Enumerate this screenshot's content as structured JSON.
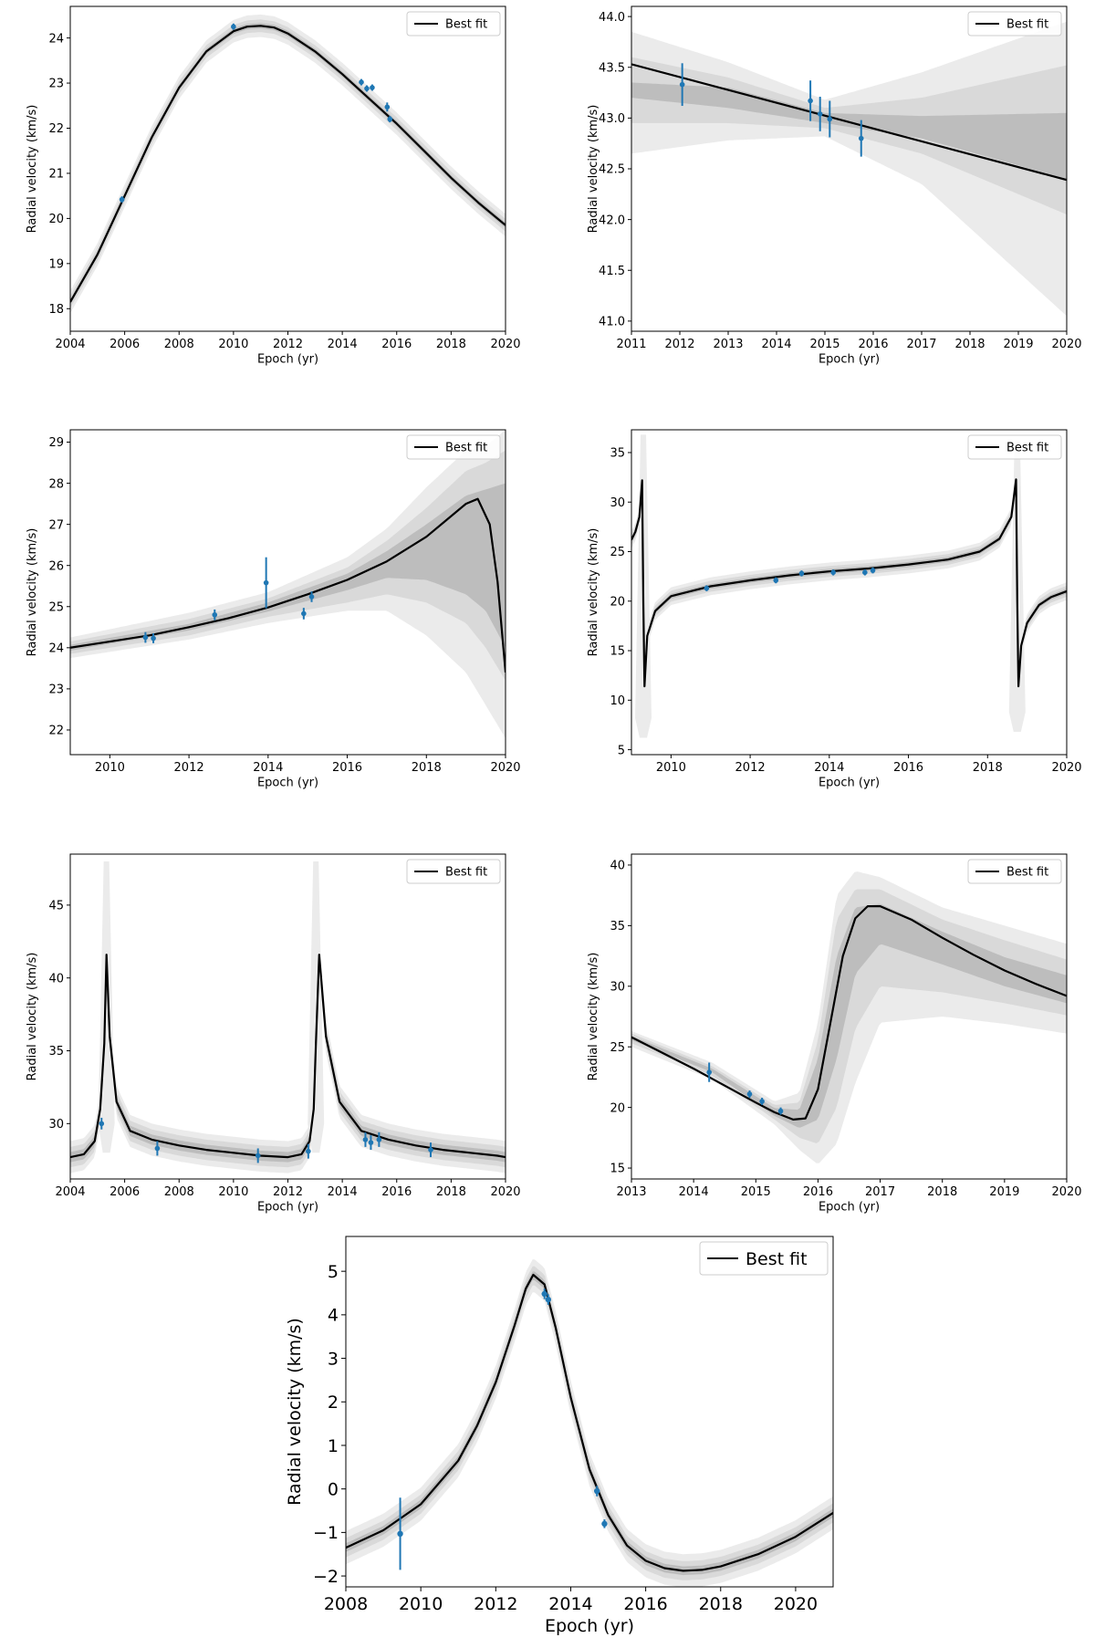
{
  "chart_data": [
    {
      "type": "line",
      "xlabel": "Epoch (yr)",
      "ylabel": "Radial velocity (km/s)",
      "xlim": [
        2004,
        2020
      ],
      "ylim": [
        17.5,
        24.7
      ],
      "xticks": [
        2004,
        2006,
        2008,
        2010,
        2012,
        2014,
        2016,
        2018,
        2020
      ],
      "yticks": [
        18,
        19,
        20,
        21,
        22,
        23,
        24
      ],
      "legend": {
        "label": "Best fit",
        "position": "top-right"
      },
      "grid": false,
      "band_widths": [
        0.06,
        0.14,
        0.25
      ],
      "fit": {
        "x": [
          2004,
          2005,
          2006,
          2007,
          2008,
          2009,
          2010,
          2010.5,
          2011,
          2011.5,
          2012,
          2013,
          2014,
          2015,
          2016,
          2017,
          2018,
          2019,
          2020
        ],
        "y": [
          18.15,
          19.2,
          20.5,
          21.8,
          22.9,
          23.7,
          24.15,
          24.25,
          24.27,
          24.23,
          24.1,
          23.7,
          23.2,
          22.65,
          22.1,
          21.5,
          20.9,
          20.35,
          19.85
        ]
      },
      "points": [
        {
          "x": 2005.9,
          "y": 20.42,
          "err": 0.07
        },
        {
          "x": 2010.0,
          "y": 24.25,
          "err": 0.07
        },
        {
          "x": 2014.7,
          "y": 23.02,
          "err": 0.07
        },
        {
          "x": 2014.9,
          "y": 22.88,
          "err": 0.07
        },
        {
          "x": 2015.1,
          "y": 22.9,
          "err": 0.07
        },
        {
          "x": 2015.65,
          "y": 22.47,
          "err": 0.1
        },
        {
          "x": 2015.75,
          "y": 22.2,
          "err": 0.07
        }
      ]
    },
    {
      "type": "line",
      "xlabel": "Epoch (yr)",
      "ylabel": "Radial velocity (km/s)",
      "xlim": [
        2011,
        2020
      ],
      "ylim": [
        40.9,
        44.1
      ],
      "xticks": [
        2011,
        2012,
        2013,
        2014,
        2015,
        2016,
        2017,
        2018,
        2019,
        2020
      ],
      "yticks": [
        41.0,
        41.5,
        42.0,
        42.5,
        43.0,
        43.5,
        44.0
      ],
      "legend": {
        "label": "Best fit",
        "position": "top-right"
      },
      "grid": false,
      "fit": {
        "x": [
          2011,
          2020
        ],
        "y": [
          43.53,
          42.39
        ]
      },
      "bands": [
        {
          "x": [
            2011,
            2013,
            2015,
            2017,
            2020
          ],
          "lo": [
            42.65,
            42.78,
            42.82,
            42.35,
            41.05
          ],
          "hi": [
            43.85,
            43.55,
            43.18,
            43.45,
            43.95
          ]
        },
        {
          "x": [
            2011,
            2013,
            2015,
            2017,
            2020
          ],
          "lo": [
            42.95,
            42.95,
            42.9,
            42.65,
            42.05
          ],
          "hi": [
            43.6,
            43.4,
            43.1,
            43.2,
            43.52
          ]
        },
        {
          "x": [
            2011,
            2013,
            2015,
            2017,
            2020
          ],
          "lo": [
            43.2,
            43.1,
            42.95,
            42.8,
            42.4
          ],
          "hi": [
            43.35,
            43.3,
            43.05,
            43.02,
            43.05
          ]
        }
      ],
      "points": [
        {
          "x": 2012.05,
          "y": 43.33,
          "err": 0.21
        },
        {
          "x": 2014.7,
          "y": 43.17,
          "err": 0.2
        },
        {
          "x": 2014.9,
          "y": 43.04,
          "err": 0.17
        },
        {
          "x": 2015.1,
          "y": 42.99,
          "err": 0.18
        },
        {
          "x": 2015.75,
          "y": 42.8,
          "err": 0.18
        }
      ]
    },
    {
      "type": "line",
      "xlabel": "Epoch (yr)",
      "ylabel": "Radial velocity (km/s)",
      "xlim": [
        2009,
        2020
      ],
      "ylim": [
        21.4,
        29.3
      ],
      "xticks": [
        2010,
        2012,
        2014,
        2016,
        2018,
        2020
      ],
      "yticks": [
        22,
        23,
        24,
        25,
        26,
        27,
        28,
        29
      ],
      "legend": {
        "label": "Best fit",
        "position": "top-right"
      },
      "grid": false,
      "fit": {
        "x": [
          2009,
          2010,
          2011,
          2012,
          2013,
          2014,
          2015,
          2016,
          2017,
          2018,
          2018.5,
          2019,
          2019.3,
          2019.6,
          2019.8,
          2020
        ],
        "y": [
          24.0,
          24.15,
          24.3,
          24.5,
          24.72,
          24.98,
          25.3,
          25.65,
          26.1,
          26.7,
          27.1,
          27.5,
          27.62,
          27.0,
          25.6,
          23.4
        ]
      },
      "bands": [
        {
          "x": [
            2009,
            2012,
            2014,
            2016,
            2017,
            2018,
            2019,
            2019.5,
            2020
          ],
          "lo": [
            23.75,
            24.2,
            24.6,
            24.9,
            24.9,
            24.3,
            23.4,
            22.6,
            21.8
          ],
          "hi": [
            24.25,
            24.85,
            25.35,
            26.2,
            26.9,
            27.9,
            28.8,
            28.9,
            29.3
          ]
        },
        {
          "x": [
            2009,
            2012,
            2014,
            2016,
            2017,
            2018,
            2019,
            2019.5,
            2020
          ],
          "lo": [
            23.85,
            24.3,
            24.75,
            25.1,
            25.3,
            25.1,
            24.6,
            24.0,
            23.2
          ],
          "hi": [
            24.15,
            24.7,
            25.2,
            25.95,
            26.6,
            27.4,
            28.3,
            28.5,
            28.8
          ]
        },
        {
          "x": [
            2009,
            2012,
            2014,
            2016,
            2017,
            2018,
            2019,
            2019.5,
            2020
          ],
          "lo": [
            23.93,
            24.42,
            24.88,
            25.4,
            25.7,
            25.65,
            25.3,
            24.9,
            24.0
          ],
          "hi": [
            24.07,
            24.58,
            25.1,
            25.8,
            26.35,
            27.0,
            27.7,
            27.85,
            28.0
          ]
        }
      ],
      "points": [
        {
          "x": 2010.9,
          "y": 24.25,
          "err": 0.13
        },
        {
          "x": 2011.1,
          "y": 24.23,
          "err": 0.12
        },
        {
          "x": 2012.65,
          "y": 24.8,
          "err": 0.13
        },
        {
          "x": 2013.95,
          "y": 25.58,
          "err": 0.62
        },
        {
          "x": 2014.9,
          "y": 24.83,
          "err": 0.14
        },
        {
          "x": 2015.1,
          "y": 25.24,
          "err": 0.13
        }
      ]
    },
    {
      "type": "line",
      "xlabel": "Epoch (yr)",
      "ylabel": "Radial velocity (km/s)",
      "xlim": [
        2009,
        2020
      ],
      "ylim": [
        4.5,
        37.3
      ],
      "xticks": [
        2010,
        2012,
        2014,
        2016,
        2018,
        2020
      ],
      "yticks": [
        5,
        10,
        15,
        20,
        25,
        30,
        35
      ],
      "legend": {
        "label": "Best fit",
        "position": "top-right"
      },
      "grid": false,
      "fit": {
        "x": [
          2009,
          2009.1,
          2009.2,
          2009.27,
          2009.3,
          2009.33,
          2009.4,
          2009.6,
          2010,
          2011,
          2012,
          2013,
          2014,
          2015,
          2016,
          2017,
          2017.8,
          2018.3,
          2018.6,
          2018.72,
          2018.75,
          2018.78,
          2018.85,
          2019.0,
          2019.3,
          2019.6,
          2020
        ],
        "y": [
          26.2,
          27.0,
          28.5,
          32.2,
          20.0,
          11.4,
          16.5,
          19.0,
          20.5,
          21.5,
          22.1,
          22.6,
          23.0,
          23.3,
          23.7,
          24.2,
          25.0,
          26.3,
          28.5,
          32.3,
          20.0,
          11.4,
          15.5,
          17.8,
          19.6,
          20.4,
          21.0
        ]
      },
      "band_widths": [
        0.25,
        0.55,
        0.9
      ],
      "spikes": [
        {
          "x": 2009.3,
          "lo": 6.2,
          "hi": 36.8
        },
        {
          "x": 2018.75,
          "lo": 6.8,
          "hi": 36.2
        }
      ],
      "points": [
        {
          "x": 2010.9,
          "y": 21.3,
          "err": 0.3
        },
        {
          "x": 2012.65,
          "y": 22.1,
          "err": 0.3
        },
        {
          "x": 2013.3,
          "y": 22.8,
          "err": 0.3
        },
        {
          "x": 2014.1,
          "y": 22.9,
          "err": 0.3
        },
        {
          "x": 2014.9,
          "y": 22.9,
          "err": 0.3
        },
        {
          "x": 2015.1,
          "y": 23.1,
          "err": 0.3
        }
      ]
    },
    {
      "type": "line",
      "xlabel": "Epoch (yr)",
      "ylabel": "Radial velocity (km/s)",
      "xlim": [
        2004,
        2020
      ],
      "ylim": [
        26.2,
        48.5
      ],
      "xticks": [
        2004,
        2006,
        2008,
        2010,
        2012,
        2014,
        2016,
        2018,
        2020
      ],
      "yticks": [
        30,
        35,
        40,
        45
      ],
      "legend": {
        "label": "Best fit",
        "position": "top-right"
      },
      "grid": false,
      "fit": {
        "x": [
          2004,
          2004.5,
          2004.9,
          2005.1,
          2005.25,
          2005.33,
          2005.45,
          2005.7,
          2006.2,
          2007,
          2008,
          2009,
          2010,
          2011,
          2012,
          2012.5,
          2012.8,
          2012.95,
          2013.03,
          2013.15,
          2013.4,
          2013.9,
          2014.7,
          2015.7,
          2016.7,
          2017.7,
          2018.7,
          2019.7,
          2020
        ],
        "y": [
          27.7,
          27.9,
          28.8,
          31.0,
          35.5,
          41.6,
          36.0,
          31.5,
          29.5,
          28.9,
          28.5,
          28.2,
          28.0,
          27.8,
          27.7,
          27.9,
          28.8,
          31.0,
          35.5,
          41.6,
          36.0,
          31.5,
          29.5,
          28.9,
          28.5,
          28.2,
          28.0,
          27.8,
          27.7
        ]
      },
      "band_widths": [
        0.35,
        0.7,
        1.1
      ],
      "spikes": [
        {
          "x": 2005.33,
          "lo": 28.0,
          "hi": 48.0
        },
        {
          "x": 2013.03,
          "lo": 28.0,
          "hi": 48.0
        }
      ],
      "points": [
        {
          "x": 2005.15,
          "y": 30.0,
          "err": 0.4
        },
        {
          "x": 2007.2,
          "y": 28.3,
          "err": 0.5
        },
        {
          "x": 2010.9,
          "y": 27.8,
          "err": 0.5
        },
        {
          "x": 2012.75,
          "y": 28.1,
          "err": 0.5
        },
        {
          "x": 2014.85,
          "y": 28.9,
          "err": 0.5
        },
        {
          "x": 2015.05,
          "y": 28.7,
          "err": 0.5
        },
        {
          "x": 2015.35,
          "y": 28.9,
          "err": 0.5
        },
        {
          "x": 2017.25,
          "y": 28.2,
          "err": 0.5
        }
      ]
    },
    {
      "type": "line",
      "xlabel": "Epoch (yr)",
      "ylabel": "Radial velocity (km/s)",
      "xlim": [
        2013,
        2020
      ],
      "ylim": [
        14.1,
        40.9
      ],
      "xticks": [
        2013,
        2014,
        2015,
        2016,
        2017,
        2018,
        2019,
        2020
      ],
      "yticks": [
        15,
        20,
        25,
        30,
        35,
        40
      ],
      "legend": {
        "label": "Best fit",
        "position": "top-right"
      },
      "grid": false,
      "fit": {
        "x": [
          2013,
          2013.5,
          2014,
          2014.5,
          2015,
          2015.3,
          2015.6,
          2015.8,
          2016.0,
          2016.2,
          2016.4,
          2016.6,
          2016.8,
          2017.0,
          2017.5,
          2018,
          2018.5,
          2019,
          2019.5,
          2020
        ],
        "y": [
          25.8,
          24.5,
          23.2,
          21.8,
          20.4,
          19.6,
          19.0,
          19.1,
          21.5,
          27.0,
          32.5,
          35.6,
          36.6,
          36.6,
          35.5,
          34.0,
          32.6,
          31.3,
          30.2,
          29.2
        ]
      },
      "bands": [
        {
          "x": [
            2013,
            2014.3,
            2015.3,
            2015.7,
            2016.0,
            2016.3,
            2016.6,
            2017,
            2018,
            2019,
            2020
          ],
          "lo": [
            25.0,
            22.3,
            18.6,
            16.5,
            15.3,
            17.0,
            22.0,
            27.0,
            27.5,
            26.9,
            26.1
          ],
          "hi": [
            26.3,
            23.7,
            20.5,
            21.2,
            27.0,
            37.5,
            39.5,
            39.0,
            36.5,
            35.0,
            33.5
          ]
        },
        {
          "x": [
            2013,
            2014.3,
            2015.3,
            2015.7,
            2016.0,
            2016.3,
            2016.6,
            2017,
            2018,
            2019,
            2020
          ],
          "lo": [
            25.3,
            22.6,
            19.0,
            17.5,
            17.0,
            20.0,
            26.5,
            30.0,
            29.5,
            28.6,
            27.6
          ],
          "hi": [
            26.1,
            23.4,
            20.2,
            20.4,
            25.5,
            35.5,
            38.0,
            38.0,
            35.5,
            33.8,
            32.2
          ]
        },
        {
          "x": [
            2013,
            2014.3,
            2015.3,
            2015.7,
            2016.0,
            2016.3,
            2016.6,
            2017,
            2018,
            2019,
            2020
          ],
          "lo": [
            25.55,
            22.9,
            19.3,
            18.3,
            19.0,
            24.0,
            31.0,
            33.5,
            31.8,
            30.0,
            28.6
          ],
          "hi": [
            25.9,
            23.2,
            19.95,
            19.8,
            24.0,
            32.5,
            36.5,
            36.8,
            34.5,
            32.4,
            30.9
          ]
        }
      ],
      "points": [
        {
          "x": 2014.25,
          "y": 22.9,
          "err": 0.8
        },
        {
          "x": 2014.9,
          "y": 21.1,
          "err": 0.3
        },
        {
          "x": 2015.1,
          "y": 20.5,
          "err": 0.3
        },
        {
          "x": 2015.4,
          "y": 19.7,
          "err": 0.3
        }
      ]
    },
    {
      "type": "line",
      "xlabel": "Epoch (yr)",
      "ylabel": "Radial velocity (km/s)",
      "xlim": [
        2008,
        2021
      ],
      "ylim": [
        -2.25,
        5.8
      ],
      "xticks": [
        2008,
        2010,
        2012,
        2014,
        2016,
        2018,
        2020
      ],
      "yticks": [
        -2,
        -1,
        0,
        1,
        2,
        3,
        4,
        5
      ],
      "legend": {
        "label": "Best fit",
        "position": "top-right"
      },
      "grid": false,
      "band_widths": [
        0.1,
        0.22,
        0.38
      ],
      "fit": {
        "x": [
          2008,
          2009,
          2010,
          2011,
          2011.5,
          2012,
          2012.5,
          2012.8,
          2013,
          2013.3,
          2013.6,
          2014,
          2014.5,
          2015,
          2015.5,
          2016,
          2016.5,
          2017,
          2017.5,
          2018,
          2019,
          2020,
          2021
        ],
        "y": [
          -1.35,
          -0.95,
          -0.35,
          0.65,
          1.45,
          2.45,
          3.75,
          4.6,
          4.92,
          4.7,
          3.7,
          2.1,
          0.45,
          -0.6,
          -1.3,
          -1.65,
          -1.82,
          -1.88,
          -1.86,
          -1.78,
          -1.5,
          -1.1,
          -0.55
        ]
      },
      "points": [
        {
          "x": 2009.45,
          "y": -1.03,
          "err": 0.83
        },
        {
          "x": 2013.3,
          "y": 4.48,
          "err": 0.12
        },
        {
          "x": 2013.4,
          "y": 4.35,
          "err": 0.12
        },
        {
          "x": 2014.7,
          "y": -0.05,
          "err": 0.12
        },
        {
          "x": 2014.9,
          "y": -0.8,
          "err": 0.1
        }
      ]
    }
  ]
}
